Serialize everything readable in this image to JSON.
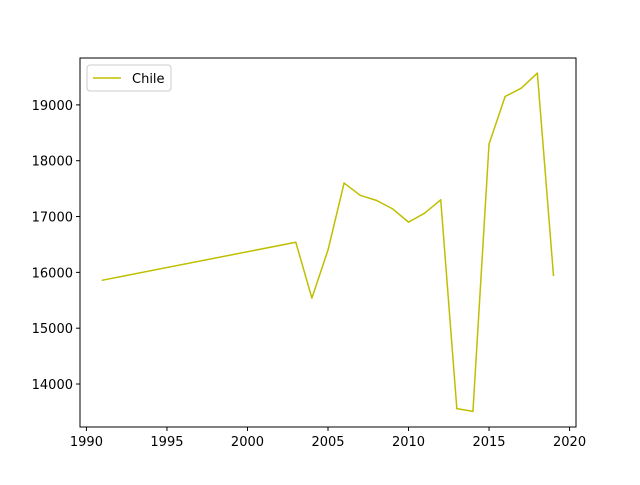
{
  "chart_data": {
    "type": "line",
    "title": "",
    "xlabel": "",
    "ylabel": "",
    "xlim": [
      1989.6,
      2020.4
    ],
    "ylim": [
      13230,
      19840
    ],
    "xticks": [
      1990,
      1995,
      2000,
      2005,
      2010,
      2015,
      2020
    ],
    "yticks": [
      14000,
      15000,
      16000,
      17000,
      18000,
      19000
    ],
    "grid": false,
    "legend": {
      "position": "top-left",
      "entries": [
        "Chile"
      ]
    },
    "series": [
      {
        "name": "Chile",
        "color": "#bfbf00",
        "x": [
          1991,
          2003,
          2004,
          2005,
          2006,
          2007,
          2008,
          2009,
          2010,
          2011,
          2012,
          2013,
          2014,
          2015,
          2016,
          2017,
          2018,
          2019
        ],
        "values": [
          15860,
          16540,
          15540,
          16400,
          17600,
          17380,
          17290,
          17140,
          16900,
          17060,
          17300,
          13560,
          13510,
          18300,
          19150,
          19300,
          19570,
          15950
        ]
      }
    ]
  }
}
